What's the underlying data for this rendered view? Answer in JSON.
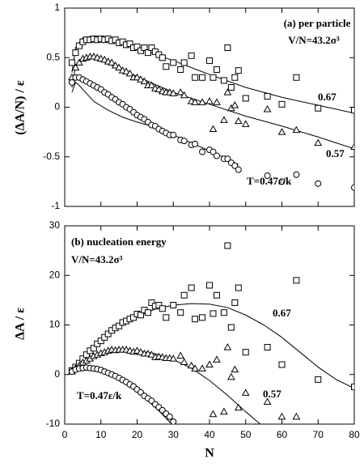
{
  "chart_data": [
    {
      "type": "scatter",
      "title": "(a) per particle",
      "subtitle": "V/N=43.2σ³",
      "ylabel": "(ΔA/N) / ε",
      "xlim": [
        0,
        80
      ],
      "ylim": [
        -1,
        1
      ],
      "xticks": [
        0,
        10,
        20,
        30,
        40,
        50,
        60,
        70,
        80
      ],
      "yticks": [
        1,
        0.5,
        0,
        -0.5,
        -1
      ],
      "series": [
        {
          "name": "0.67",
          "marker": "square",
          "color": "#000000",
          "x": [
            2,
            3,
            4,
            5,
            6,
            7,
            8,
            9,
            10,
            11,
            12,
            13,
            14,
            15,
            16,
            17,
            18,
            19,
            20,
            21,
            22,
            23,
            24,
            25,
            26,
            27,
            28,
            30,
            32,
            33,
            35,
            36,
            38,
            40,
            41,
            42,
            44,
            45,
            46,
            47,
            48,
            50,
            56,
            60,
            64,
            70,
            80
          ],
          "values": [
            0.45,
            0.55,
            0.62,
            0.66,
            0.68,
            0.68,
            0.69,
            0.68,
            0.69,
            0.68,
            0.69,
            0.67,
            0.68,
            0.65,
            0.66,
            0.63,
            0.64,
            0.6,
            0.61,
            0.57,
            0.6,
            0.55,
            0.6,
            0.56,
            0.53,
            0.5,
            0.41,
            0.45,
            0.38,
            0.45,
            0.52,
            0.3,
            0.3,
            0.47,
            0.3,
            0.38,
            0.27,
            0.6,
            0.2,
            0.3,
            0.37,
            0.09,
            0.11,
            0.03,
            0.3,
            -0.01,
            -0.03
          ],
          "fit_x": [
            2,
            3,
            5,
            8,
            12,
            20,
            30,
            40,
            50,
            60,
            70,
            80
          ],
          "fit_values": [
            0.35,
            0.6,
            0.7,
            0.72,
            0.7,
            0.6,
            0.47,
            0.33,
            0.2,
            0.1,
            0.02,
            -0.06
          ]
        },
        {
          "name": "0.57",
          "marker": "triangle",
          "color": "#000000",
          "x": [
            2,
            3,
            4,
            5,
            6,
            7,
            8,
            9,
            10,
            11,
            12,
            13,
            14,
            15,
            16,
            17,
            18,
            19,
            20,
            21,
            22,
            23,
            24,
            25,
            26,
            27,
            28,
            29,
            30,
            32,
            33,
            35,
            36,
            38,
            40,
            41,
            42,
            44,
            45,
            46,
            47,
            48,
            50,
            56,
            60,
            64,
            70,
            80
          ],
          "values": [
            0.3,
            0.4,
            0.45,
            0.49,
            0.5,
            0.51,
            0.51,
            0.5,
            0.49,
            0.48,
            0.46,
            0.45,
            0.42,
            0.4,
            0.37,
            0.36,
            0.34,
            0.3,
            0.3,
            0.28,
            0.26,
            0.22,
            0.22,
            0.19,
            0.18,
            0.16,
            0.15,
            0.15,
            0.14,
            0.15,
            0.12,
            0.06,
            0.05,
            0.05,
            0.06,
            -0.22,
            0.05,
            -0.13,
            0.15,
            -0.01,
            0.02,
            -0.14,
            -0.17,
            -0.02,
            -0.25,
            -0.23,
            -0.36,
            -0.4
          ],
          "fit_x": [
            2,
            3,
            5,
            8,
            12,
            20,
            30,
            40,
            50,
            60,
            70,
            80
          ],
          "fit_values": [
            0.2,
            0.42,
            0.5,
            0.5,
            0.44,
            0.31,
            0.15,
            0.03,
            -0.09,
            -0.19,
            -0.3,
            -0.42
          ]
        },
        {
          "name": "T=0.47ε/k",
          "marker": "circle",
          "color": "#000000",
          "x": [
            2,
            3,
            4,
            5,
            6,
            7,
            8,
            9,
            10,
            11,
            12,
            13,
            14,
            15,
            16,
            17,
            18,
            19,
            20,
            21,
            22,
            23,
            24,
            25,
            26,
            27,
            28,
            29,
            30,
            32,
            33,
            35,
            36,
            38,
            40,
            41,
            42,
            44,
            45,
            46,
            47,
            48,
            56,
            60,
            64,
            70,
            80
          ],
          "values": [
            0.25,
            0.3,
            0.3,
            0.28,
            0.26,
            0.24,
            0.22,
            0.2,
            0.18,
            0.15,
            0.13,
            0.1,
            0.08,
            0.05,
            0.03,
            0.0,
            -0.02,
            -0.05,
            -0.08,
            -0.1,
            -0.12,
            -0.15,
            -0.18,
            -0.19,
            -0.22,
            -0.24,
            -0.26,
            -0.28,
            -0.28,
            -0.33,
            -0.34,
            -0.38,
            -0.37,
            -0.45,
            -0.43,
            -0.45,
            -0.49,
            -0.52,
            -0.52,
            -0.56,
            -0.59,
            -0.63,
            -0.69,
            -0.75,
            -0.68,
            -0.77,
            -0.81
          ],
          "fit_x": [
            2,
            3,
            4,
            6,
            8,
            12,
            16,
            20,
            25,
            30,
            35,
            40,
            45,
            48
          ],
          "fit_values": [
            0.15,
            0.25,
            0.22,
            0.14,
            0.06,
            -0.03,
            -0.1,
            -0.15,
            -0.2,
            -0.28,
            -0.36,
            -0.44,
            -0.52,
            -0.58
          ]
        }
      ]
    },
    {
      "type": "scatter",
      "title": "(b) nucleation energy",
      "subtitle": "V/N=43.2σ³",
      "ylabel": "ΔA / ε",
      "xlabel": "N",
      "xlim": [
        0,
        80
      ],
      "ylim": [
        -10,
        30
      ],
      "xticks": [
        0,
        10,
        20,
        30,
        40,
        50,
        60,
        70,
        80
      ],
      "yticks": [
        30,
        20,
        10,
        0,
        -10
      ],
      "series": [
        {
          "name": "0.67",
          "marker": "square",
          "color": "#000000",
          "x": [
            2,
            3,
            4,
            5,
            6,
            7,
            8,
            9,
            10,
            11,
            12,
            13,
            14,
            15,
            16,
            17,
            18,
            19,
            20,
            21,
            22,
            23,
            24,
            25,
            26,
            27,
            28,
            30,
            32,
            33,
            35,
            36,
            38,
            40,
            41,
            42,
            44,
            45,
            46,
            47,
            48,
            50,
            56,
            60,
            64,
            70,
            80
          ],
          "values": [
            0.8,
            1.5,
            2.3,
            3.2,
            4,
            4.8,
            5.3,
            6.2,
            6.8,
            7.5,
            8.2,
            8.9,
            9.4,
            9.8,
            10.5,
            10.8,
            11.2,
            11.5,
            12.2,
            12,
            13,
            12.5,
            14.5,
            13.8,
            14,
            13.3,
            11.5,
            14,
            12.5,
            16,
            17.5,
            11.2,
            11.5,
            18,
            12.3,
            16,
            12.5,
            26,
            9.5,
            14.5,
            17.5,
            4.5,
            5.5,
            2,
            19,
            -1,
            -2.5
          ],
          "fit_x": [
            2,
            5,
            10,
            15,
            20,
            25,
            30,
            35,
            40,
            45,
            50,
            55,
            60,
            65,
            70,
            75,
            80
          ],
          "fit_values": [
            0.7,
            3.3,
            6.8,
            9.5,
            11.7,
            13.2,
            14,
            14.3,
            14.2,
            13.5,
            12,
            10,
            7.5,
            4.5,
            1.5,
            -1,
            -2.8
          ]
        },
        {
          "name": "0.57",
          "marker": "triangle",
          "color": "#000000",
          "x": [
            2,
            3,
            4,
            5,
            6,
            7,
            8,
            9,
            10,
            11,
            12,
            13,
            14,
            15,
            16,
            17,
            18,
            19,
            20,
            21,
            22,
            23,
            24,
            25,
            26,
            27,
            28,
            29,
            30,
            32,
            33,
            35,
            36,
            38,
            40,
            41,
            42,
            44,
            45,
            46,
            47,
            48,
            50,
            56,
            60,
            64
          ],
          "values": [
            0.6,
            1.2,
            1.8,
            2.4,
            2.8,
            3.2,
            3.7,
            4,
            4.3,
            4.5,
            4.8,
            5,
            4.9,
            5,
            5,
            5,
            4.8,
            4.6,
            4.8,
            4.5,
            4.2,
            4.2,
            4,
            3.5,
            3.6,
            3.5,
            3.3,
            3.3,
            3.2,
            3.8,
            2.5,
            1.8,
            1.2,
            1.2,
            2,
            -8,
            3,
            -7.5,
            5.5,
            -0.5,
            1,
            -6.7,
            -3.7,
            -5.5,
            -8.5,
            -8.5
          ],
          "fit_x": [
            2,
            5,
            10,
            15,
            20,
            25,
            30,
            35,
            40,
            45,
            50,
            54
          ],
          "fit_values": [
            0.5,
            2.3,
            4,
            4.8,
            4.8,
            4.2,
            3,
            1.3,
            -1.2,
            -4.2,
            -7.5,
            -10
          ]
        },
        {
          "name": "T=0.47ε/k",
          "marker": "circle",
          "color": "#000000",
          "x": [
            2,
            3,
            4,
            5,
            6,
            7,
            8,
            9,
            10,
            11,
            12,
            13,
            14,
            15,
            16,
            17,
            18,
            19,
            20,
            21,
            22,
            23,
            24,
            25,
            26,
            27,
            28,
            29,
            30
          ],
          "values": [
            0.6,
            1,
            1.2,
            1.3,
            1.4,
            1.3,
            1.2,
            1.1,
            0.9,
            0.6,
            0.3,
            0,
            -0.3,
            -0.7,
            -1.1,
            -1.5,
            -2,
            -2.4,
            -3,
            -3.6,
            -4.3,
            -4.8,
            -5.3,
            -6,
            -6.6,
            -7.2,
            -7.9,
            -8.5,
            -9.5
          ],
          "fit_x": [
            2,
            5,
            8,
            11,
            14,
            17,
            20,
            23,
            26,
            29,
            30
          ],
          "fit_values": [
            0.5,
            1.2,
            1,
            0.4,
            -0.6,
            -2,
            -3.5,
            -5.3,
            -7.3,
            -9.6,
            -10
          ]
        }
      ]
    }
  ]
}
